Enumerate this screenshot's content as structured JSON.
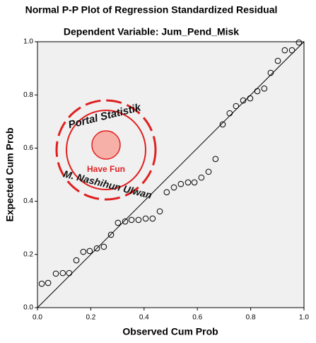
{
  "chart_data": {
    "type": "scatter",
    "title": "Normal P-P Plot of Regression Standardized Residual",
    "subtitle": "Dependent Variable: Jum_Pend_Misk",
    "x_label": "Observed Cum Prob",
    "y_label": "Expected Cum Prob",
    "x": [
      0.016,
      0.04,
      0.069,
      0.095,
      0.119,
      0.146,
      0.172,
      0.196,
      0.223,
      0.249,
      0.276,
      0.302,
      0.329,
      0.353,
      0.379,
      0.406,
      0.432,
      0.459,
      0.485,
      0.512,
      0.538,
      0.565,
      0.589,
      0.615,
      0.642,
      0.668,
      0.695,
      0.721,
      0.745,
      0.772,
      0.798,
      0.825,
      0.851,
      0.875,
      0.902,
      0.928,
      0.955,
      0.981
    ],
    "values": [
      0.09,
      0.093,
      0.128,
      0.13,
      0.13,
      0.178,
      0.21,
      0.213,
      0.223,
      0.229,
      0.274,
      0.319,
      0.324,
      0.33,
      0.33,
      0.335,
      0.335,
      0.362,
      0.434,
      0.452,
      0.465,
      0.471,
      0.471,
      0.489,
      0.511,
      0.559,
      0.689,
      0.731,
      0.758,
      0.779,
      0.787,
      0.814,
      0.824,
      0.883,
      0.928,
      0.968,
      0.968,
      0.997
    ],
    "color": "#000000",
    "xlim": [
      0,
      1
    ],
    "ylim": [
      0,
      1
    ],
    "xticks": [
      {
        "value": 0,
        "label": "0.0"
      },
      0.2,
      0.4,
      0.6,
      0.8,
      {
        "value": 1,
        "label": "1.0"
      }
    ],
    "yticks": [
      {
        "value": 0,
        "label": "0.0"
      },
      0.2,
      0.4,
      0.6,
      0.8,
      {
        "value": 1,
        "label": "1.0"
      }
    ],
    "diagonal": true
  },
  "watermark": {
    "top": "Portal Statistik",
    "center": "Have Fun",
    "bottom": "M. Nashihun Ulwan"
  }
}
